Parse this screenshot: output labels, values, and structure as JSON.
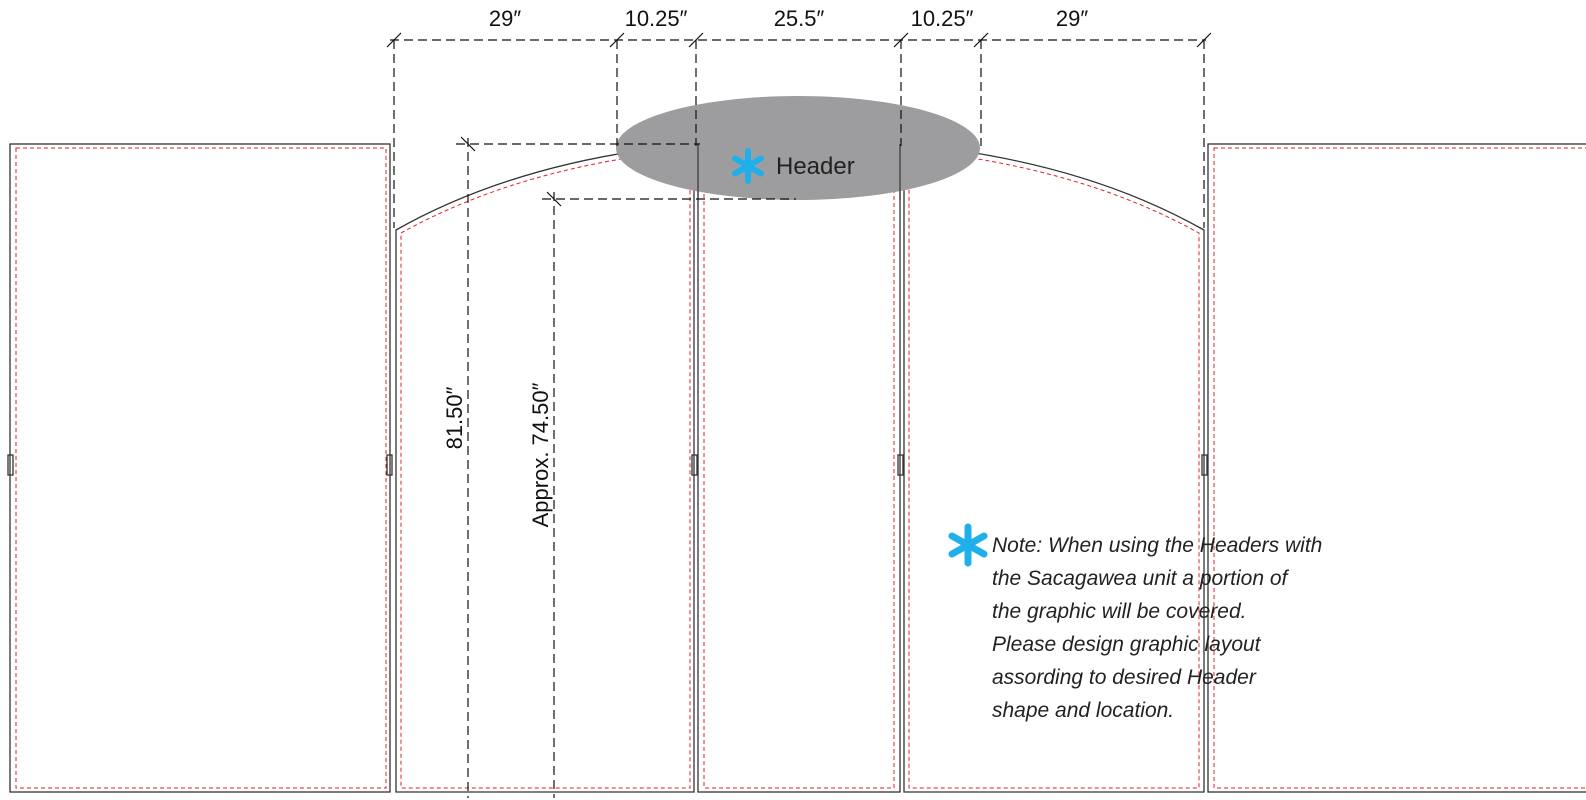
{
  "dimensions": {
    "top": [
      "29″",
      "10.25″",
      "25.5″",
      "10.25″",
      "29″"
    ],
    "height_full": "81.50″",
    "height_approx": "Approx. 74.50″"
  },
  "header": {
    "label": "Header",
    "fill_color": "#9d9d9f"
  },
  "note": {
    "lines": [
      "Note: When using the Headers with",
      "the Sacagawea unit a portion of",
      "the graphic will be covered.",
      "Please design graphic layout",
      "assording to desired Header",
      "shape and location."
    ]
  },
  "colors": {
    "asterisk": "#1fb0ec",
    "bleed_line": "#e0202a",
    "outline": "#333333"
  }
}
